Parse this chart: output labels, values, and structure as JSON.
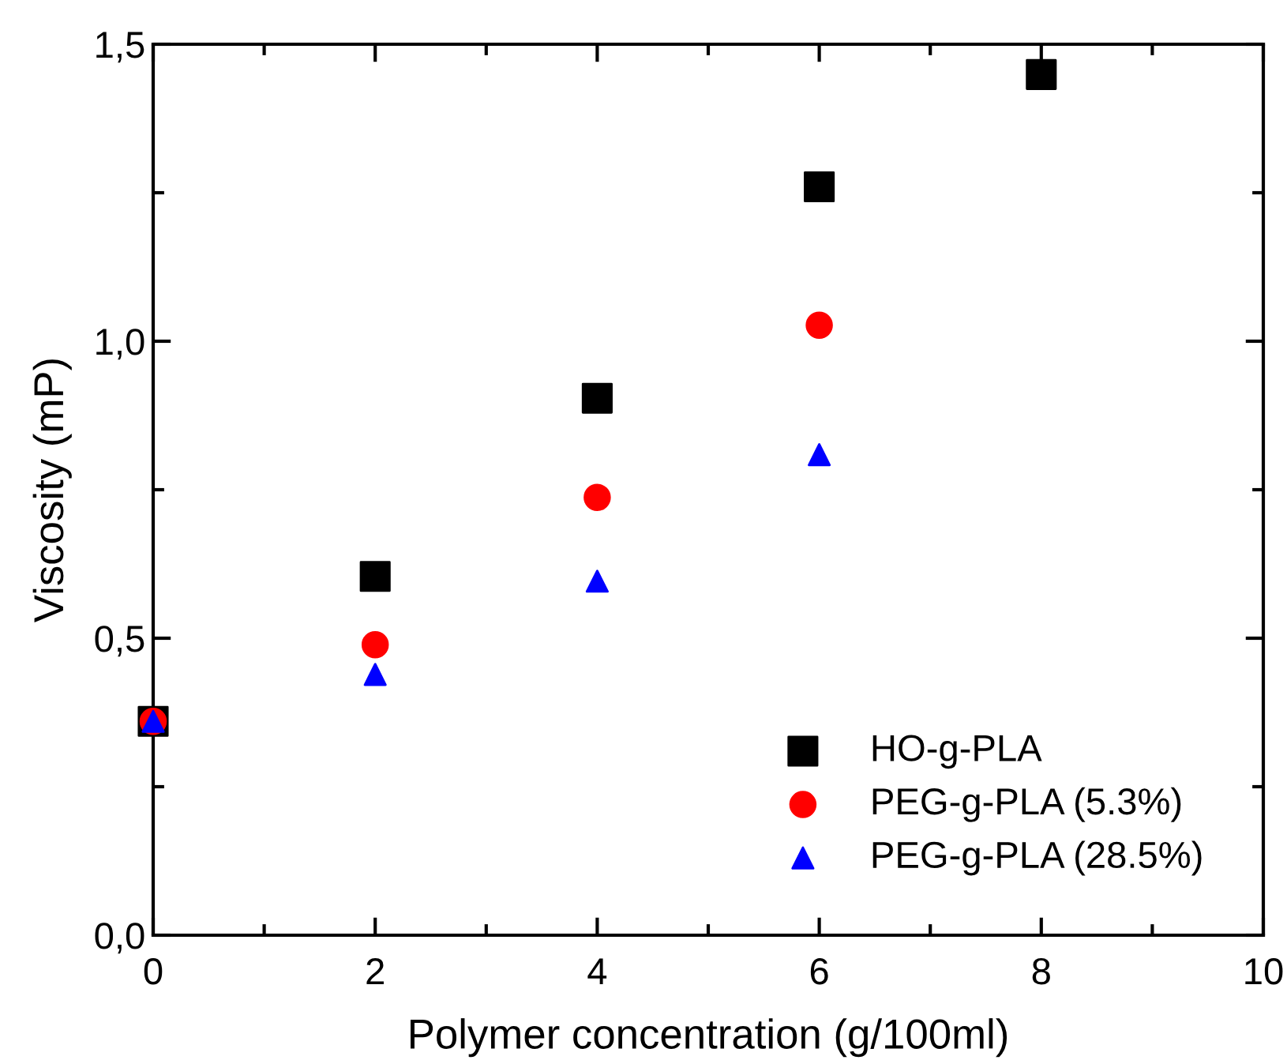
{
  "chart_data": {
    "type": "scatter",
    "xlabel": "Polymer concentration (g/100ml)",
    "ylabel": "Viscosity (mP)",
    "xlim": [
      0,
      10
    ],
    "ylim": [
      0,
      1.5
    ],
    "xticks": [
      0,
      2,
      4,
      6,
      8,
      10
    ],
    "yticks": [
      {
        "value": 0,
        "label": "0,0"
      },
      {
        "value": 0.5,
        "label": "0,5"
      },
      {
        "value": 1.0,
        "label": "1,0"
      },
      {
        "value": 1.5,
        "label": "1,5"
      }
    ],
    "legend": "bottom right",
    "grid": false,
    "series": [
      {
        "name": "HO-g-PLA",
        "color": "#000000",
        "marker": "square",
        "x": [
          0,
          2,
          4,
          6,
          8
        ],
        "values": [
          0.36,
          0.604,
          0.904,
          1.26,
          1.449
        ]
      },
      {
        "name": "PEG-g-PLA (5.3%)",
        "color": "#ff0000",
        "marker": "circle",
        "x": [
          0,
          2,
          4,
          6
        ],
        "values": [
          0.36,
          0.489,
          0.737,
          1.027
        ]
      },
      {
        "name": "PEG-g-PLA (28.5%)",
        "color": "#0000ff",
        "marker": "triangle",
        "x": [
          0,
          2,
          4,
          6
        ],
        "values": [
          0.36,
          0.439,
          0.596,
          0.809
        ]
      }
    ]
  }
}
